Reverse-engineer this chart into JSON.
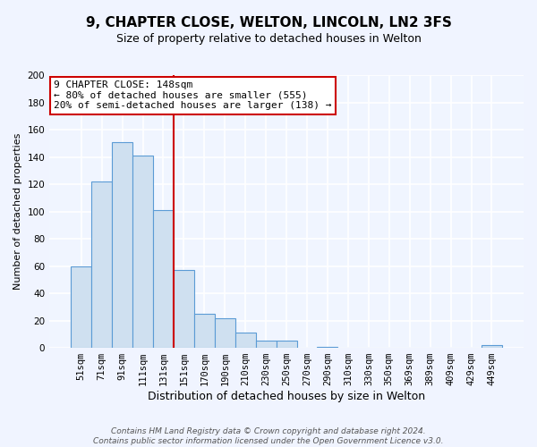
{
  "title": "9, CHAPTER CLOSE, WELTON, LINCOLN, LN2 3FS",
  "subtitle": "Size of property relative to detached houses in Welton",
  "xlabel": "Distribution of detached houses by size in Welton",
  "ylabel": "Number of detached properties",
  "bar_labels": [
    "51sqm",
    "71sqm",
    "91sqm",
    "111sqm",
    "131sqm",
    "151sqm",
    "170sqm",
    "190sqm",
    "210sqm",
    "230sqm",
    "250sqm",
    "270sqm",
    "290sqm",
    "310sqm",
    "330sqm",
    "350sqm",
    "369sqm",
    "389sqm",
    "409sqm",
    "429sqm",
    "449sqm"
  ],
  "bar_heights": [
    60,
    122,
    151,
    141,
    101,
    57,
    25,
    22,
    11,
    5,
    5,
    0,
    1,
    0,
    0,
    0,
    0,
    0,
    0,
    0,
    2
  ],
  "bar_color": "#cfe0f0",
  "bar_edge_color": "#5b9bd5",
  "vline_x_idx": 5,
  "vline_color": "#cc0000",
  "annotation_text": "9 CHAPTER CLOSE: 148sqm\n← 80% of detached houses are smaller (555)\n20% of semi-detached houses are larger (138) →",
  "annotation_box_color": "#ffffff",
  "annotation_box_edge": "#cc0000",
  "ylim": [
    0,
    200
  ],
  "yticks": [
    0,
    20,
    40,
    60,
    80,
    100,
    120,
    140,
    160,
    180,
    200
  ],
  "footer_line1": "Contains HM Land Registry data © Crown copyright and database right 2024.",
  "footer_line2": "Contains public sector information licensed under the Open Government Licence v3.0.",
  "title_fontsize": 11,
  "subtitle_fontsize": 9,
  "xlabel_fontsize": 9,
  "ylabel_fontsize": 8,
  "tick_fontsize": 7.5,
  "annotation_fontsize": 8,
  "footer_fontsize": 6.5,
  "bg_color": "#f0f4ff",
  "plot_bg_color": "#f0f5ff",
  "grid_color": "#ffffff"
}
